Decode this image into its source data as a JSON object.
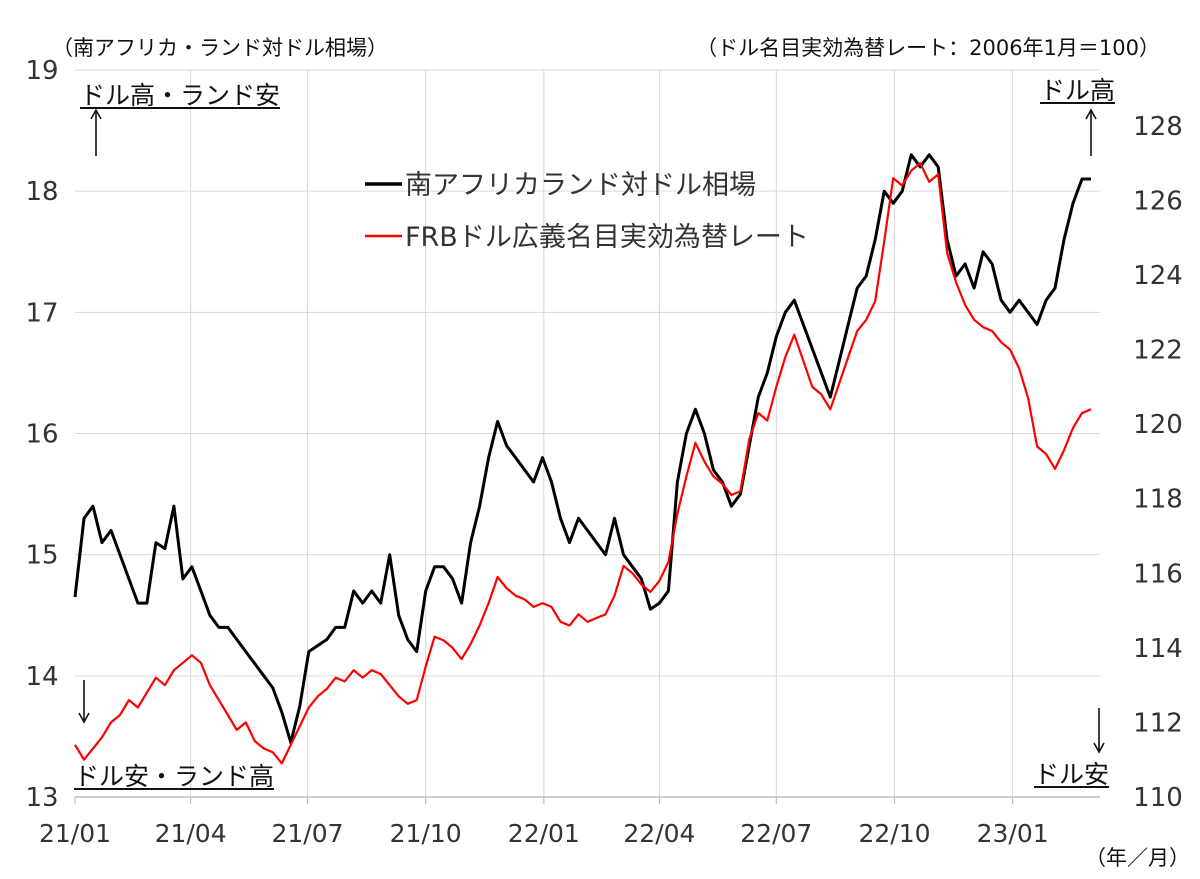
{
  "headers": {
    "left_unit": "（南アフリカ・ランド対ドル相場）",
    "right_unit": "（ドル名目実効為替レート：2006年1月＝100）",
    "x_unit": "（年／月）"
  },
  "annotations": {
    "top_left": "ドル高・ランド安",
    "bottom_left": "ドル安・ランド高",
    "top_right": "ドル高",
    "bottom_right": "ドル安"
  },
  "colors": {
    "rand": "#000000",
    "frb": "#ff0000",
    "grid": "#d9d9d9",
    "axis": "#bfbfbf"
  },
  "chart_data": {
    "type": "line",
    "title": "",
    "x_ticks": [
      "21/01",
      "21/04",
      "21/07",
      "21/10",
      "22/01",
      "22/04",
      "22/07",
      "22/10",
      "23/01"
    ],
    "x_range": [
      "2021-01",
      "2023-03"
    ],
    "y_left": {
      "ticks": [
        13,
        14,
        15,
        16,
        17,
        18,
        19
      ],
      "range": [
        13,
        19
      ]
    },
    "y_right": {
      "ticks": [
        110,
        112,
        114,
        116,
        118,
        120,
        122,
        124,
        126,
        128
      ],
      "range": [
        110,
        129.5
      ]
    },
    "grid": "vertical+horizontal",
    "legend_position": "top-center",
    "series": [
      {
        "name": "南アフリカランド対ドル相場",
        "axis": "left",
        "points": [
          [
            "2021-01-01",
            14.65
          ],
          [
            "2021-01-08",
            15.3
          ],
          [
            "2021-01-15",
            15.4
          ],
          [
            "2021-01-22",
            15.1
          ],
          [
            "2021-01-29",
            15.2
          ],
          [
            "2021-02-05",
            15.0
          ],
          [
            "2021-02-12",
            14.8
          ],
          [
            "2021-02-19",
            14.6
          ],
          [
            "2021-02-26",
            14.6
          ],
          [
            "2021-03-05",
            15.1
          ],
          [
            "2021-03-12",
            15.05
          ],
          [
            "2021-03-19",
            15.4
          ],
          [
            "2021-03-26",
            14.8
          ],
          [
            "2021-04-02",
            14.9
          ],
          [
            "2021-04-09",
            14.7
          ],
          [
            "2021-04-16",
            14.5
          ],
          [
            "2021-04-23",
            14.4
          ],
          [
            "2021-04-30",
            14.4
          ],
          [
            "2021-05-07",
            14.3
          ],
          [
            "2021-05-14",
            14.2
          ],
          [
            "2021-05-21",
            14.1
          ],
          [
            "2021-05-28",
            14.0
          ],
          [
            "2021-06-04",
            13.9
          ],
          [
            "2021-06-11",
            13.7
          ],
          [
            "2021-06-18",
            13.45
          ],
          [
            "2021-06-25",
            13.75
          ],
          [
            "2021-07-02",
            14.2
          ],
          [
            "2021-07-09",
            14.25
          ],
          [
            "2021-07-16",
            14.3
          ],
          [
            "2021-07-23",
            14.4
          ],
          [
            "2021-07-30",
            14.4
          ],
          [
            "2021-08-06",
            14.7
          ],
          [
            "2021-08-13",
            14.6
          ],
          [
            "2021-08-20",
            14.7
          ],
          [
            "2021-08-27",
            14.6
          ],
          [
            "2021-09-03",
            15.0
          ],
          [
            "2021-09-10",
            14.5
          ],
          [
            "2021-09-17",
            14.3
          ],
          [
            "2021-09-24",
            14.2
          ],
          [
            "2021-10-01",
            14.7
          ],
          [
            "2021-10-08",
            14.9
          ],
          [
            "2021-10-15",
            14.9
          ],
          [
            "2021-10-22",
            14.8
          ],
          [
            "2021-10-29",
            14.6
          ],
          [
            "2021-11-05",
            15.1
          ],
          [
            "2021-11-12",
            15.4
          ],
          [
            "2021-11-19",
            15.8
          ],
          [
            "2021-11-26",
            16.1
          ],
          [
            "2021-12-03",
            15.9
          ],
          [
            "2021-12-10",
            15.8
          ],
          [
            "2021-12-17",
            15.7
          ],
          [
            "2021-12-24",
            15.6
          ],
          [
            "2021-12-31",
            15.8
          ],
          [
            "2022-01-07",
            15.6
          ],
          [
            "2022-01-14",
            15.3
          ],
          [
            "2022-01-21",
            15.1
          ],
          [
            "2022-01-28",
            15.3
          ],
          [
            "2022-02-04",
            15.2
          ],
          [
            "2022-02-11",
            15.1
          ],
          [
            "2022-02-18",
            15.0
          ],
          [
            "2022-02-25",
            15.3
          ],
          [
            "2022-03-04",
            15.0
          ],
          [
            "2022-03-11",
            14.9
          ],
          [
            "2022-03-18",
            14.8
          ],
          [
            "2022-03-25",
            14.55
          ],
          [
            "2022-04-01",
            14.6
          ],
          [
            "2022-04-08",
            14.7
          ],
          [
            "2022-04-15",
            15.6
          ],
          [
            "2022-04-22",
            16.0
          ],
          [
            "2022-04-29",
            16.2
          ],
          [
            "2022-05-06",
            16.0
          ],
          [
            "2022-05-13",
            15.7
          ],
          [
            "2022-05-20",
            15.6
          ],
          [
            "2022-05-27",
            15.4
          ],
          [
            "2022-06-03",
            15.5
          ],
          [
            "2022-06-10",
            15.9
          ],
          [
            "2022-06-17",
            16.3
          ],
          [
            "2022-06-24",
            16.5
          ],
          [
            "2022-07-01",
            16.8
          ],
          [
            "2022-07-08",
            17.0
          ],
          [
            "2022-07-15",
            17.1
          ],
          [
            "2022-07-22",
            16.9
          ],
          [
            "2022-07-29",
            16.7
          ],
          [
            "2022-08-05",
            16.5
          ],
          [
            "2022-08-12",
            16.3
          ],
          [
            "2022-08-19",
            16.6
          ],
          [
            "2022-08-26",
            16.9
          ],
          [
            "2022-09-02",
            17.2
          ],
          [
            "2022-09-09",
            17.3
          ],
          [
            "2022-09-16",
            17.6
          ],
          [
            "2022-09-23",
            18.0
          ],
          [
            "2022-09-30",
            17.9
          ],
          [
            "2022-10-07",
            18.0
          ],
          [
            "2022-10-14",
            18.3
          ],
          [
            "2022-10-21",
            18.2
          ],
          [
            "2022-10-28",
            18.3
          ],
          [
            "2022-11-04",
            18.2
          ],
          [
            "2022-11-11",
            17.6
          ],
          [
            "2022-11-18",
            17.3
          ],
          [
            "2022-11-25",
            17.4
          ],
          [
            "2022-12-02",
            17.2
          ],
          [
            "2022-12-09",
            17.5
          ],
          [
            "2022-12-16",
            17.4
          ],
          [
            "2022-12-23",
            17.1
          ],
          [
            "2022-12-30",
            17.0
          ],
          [
            "2023-01-06",
            17.1
          ],
          [
            "2023-01-13",
            17.0
          ],
          [
            "2023-01-20",
            16.9
          ],
          [
            "2023-01-27",
            17.1
          ],
          [
            "2023-02-03",
            17.2
          ],
          [
            "2023-02-10",
            17.6
          ],
          [
            "2023-02-17",
            17.9
          ],
          [
            "2023-02-24",
            18.1
          ],
          [
            "2023-03-03",
            18.1
          ]
        ]
      },
      {
        "name": "FRBドル広義名目実効為替レート",
        "axis": "right",
        "points": [
          [
            "2021-01-01",
            111.4
          ],
          [
            "2021-01-08",
            111.0
          ],
          [
            "2021-01-15",
            111.3
          ],
          [
            "2021-01-22",
            111.6
          ],
          [
            "2021-01-29",
            112.0
          ],
          [
            "2021-02-05",
            112.2
          ],
          [
            "2021-02-12",
            112.6
          ],
          [
            "2021-02-19",
            112.4
          ],
          [
            "2021-02-26",
            112.8
          ],
          [
            "2021-03-05",
            113.2
          ],
          [
            "2021-03-12",
            113.0
          ],
          [
            "2021-03-19",
            113.4
          ],
          [
            "2021-03-26",
            113.6
          ],
          [
            "2021-04-02",
            113.8
          ],
          [
            "2021-04-09",
            113.6
          ],
          [
            "2021-04-16",
            113.0
          ],
          [
            "2021-04-23",
            112.6
          ],
          [
            "2021-04-30",
            112.2
          ],
          [
            "2021-05-07",
            111.8
          ],
          [
            "2021-05-14",
            112.0
          ],
          [
            "2021-05-21",
            111.5
          ],
          [
            "2021-05-28",
            111.3
          ],
          [
            "2021-06-04",
            111.2
          ],
          [
            "2021-06-11",
            110.9
          ],
          [
            "2021-06-18",
            111.4
          ],
          [
            "2021-06-25",
            111.9
          ],
          [
            "2021-07-02",
            112.4
          ],
          [
            "2021-07-09",
            112.7
          ],
          [
            "2021-07-16",
            112.9
          ],
          [
            "2021-07-23",
            113.2
          ],
          [
            "2021-07-30",
            113.1
          ],
          [
            "2021-08-06",
            113.4
          ],
          [
            "2021-08-13",
            113.2
          ],
          [
            "2021-08-20",
            113.4
          ],
          [
            "2021-08-27",
            113.3
          ],
          [
            "2021-09-03",
            113.0
          ],
          [
            "2021-09-10",
            112.7
          ],
          [
            "2021-09-17",
            112.5
          ],
          [
            "2021-09-24",
            112.6
          ],
          [
            "2021-10-01",
            113.5
          ],
          [
            "2021-10-08",
            114.3
          ],
          [
            "2021-10-15",
            114.2
          ],
          [
            "2021-10-22",
            114.0
          ],
          [
            "2021-10-29",
            113.7
          ],
          [
            "2021-11-05",
            114.1
          ],
          [
            "2021-11-12",
            114.6
          ],
          [
            "2021-11-19",
            115.2
          ],
          [
            "2021-11-26",
            115.9
          ],
          [
            "2021-12-03",
            115.6
          ],
          [
            "2021-12-10",
            115.4
          ],
          [
            "2021-12-17",
            115.3
          ],
          [
            "2021-12-24",
            115.1
          ],
          [
            "2021-12-31",
            115.2
          ],
          [
            "2022-01-07",
            115.1
          ],
          [
            "2022-01-14",
            114.7
          ],
          [
            "2022-01-21",
            114.6
          ],
          [
            "2022-01-28",
            114.9
          ],
          [
            "2022-02-04",
            114.7
          ],
          [
            "2022-02-11",
            114.8
          ],
          [
            "2022-02-18",
            114.9
          ],
          [
            "2022-02-25",
            115.4
          ],
          [
            "2022-03-04",
            116.2
          ],
          [
            "2022-03-11",
            116.0
          ],
          [
            "2022-03-18",
            115.7
          ],
          [
            "2022-03-25",
            115.5
          ],
          [
            "2022-04-01",
            115.8
          ],
          [
            "2022-04-08",
            116.3
          ],
          [
            "2022-04-15",
            117.6
          ],
          [
            "2022-04-22",
            118.6
          ],
          [
            "2022-04-29",
            119.5
          ],
          [
            "2022-05-06",
            119.0
          ],
          [
            "2022-05-13",
            118.6
          ],
          [
            "2022-05-20",
            118.4
          ],
          [
            "2022-05-27",
            118.1
          ],
          [
            "2022-06-03",
            118.2
          ],
          [
            "2022-06-10",
            119.6
          ],
          [
            "2022-06-17",
            120.3
          ],
          [
            "2022-06-24",
            120.1
          ],
          [
            "2022-07-01",
            121.0
          ],
          [
            "2022-07-08",
            121.8
          ],
          [
            "2022-07-15",
            122.4
          ],
          [
            "2022-07-22",
            121.7
          ],
          [
            "2022-07-29",
            121.0
          ],
          [
            "2022-08-05",
            120.8
          ],
          [
            "2022-08-12",
            120.4
          ],
          [
            "2022-08-19",
            121.1
          ],
          [
            "2022-08-26",
            121.8
          ],
          [
            "2022-09-02",
            122.5
          ],
          [
            "2022-09-09",
            122.8
          ],
          [
            "2022-09-16",
            123.3
          ],
          [
            "2022-09-23",
            124.9
          ],
          [
            "2022-09-30",
            126.6
          ],
          [
            "2022-10-07",
            126.4
          ],
          [
            "2022-10-14",
            126.8
          ],
          [
            "2022-10-21",
            127.0
          ],
          [
            "2022-10-28",
            126.5
          ],
          [
            "2022-11-04",
            126.7
          ],
          [
            "2022-11-11",
            124.6
          ],
          [
            "2022-11-18",
            123.8
          ],
          [
            "2022-11-25",
            123.2
          ],
          [
            "2022-12-02",
            122.8
          ],
          [
            "2022-12-09",
            122.6
          ],
          [
            "2022-12-16",
            122.5
          ],
          [
            "2022-12-23",
            122.2
          ],
          [
            "2022-12-30",
            122.0
          ],
          [
            "2023-01-06",
            121.5
          ],
          [
            "2023-01-13",
            120.7
          ],
          [
            "2023-01-20",
            119.4
          ],
          [
            "2023-01-27",
            119.2
          ],
          [
            "2023-02-03",
            118.8
          ],
          [
            "2023-02-10",
            119.3
          ],
          [
            "2023-02-17",
            119.9
          ],
          [
            "2023-02-24",
            120.3
          ],
          [
            "2023-03-03",
            120.4
          ]
        ]
      }
    ]
  }
}
